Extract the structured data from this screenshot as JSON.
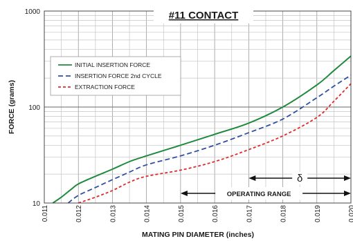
{
  "chart_data": {
    "type": "line",
    "title": "#11 CONTACT",
    "xlabel": "MATING PIN  DIAMETER (inches)",
    "ylabel": "FORCE (grams)",
    "xlim": [
      0.011,
      0.02
    ],
    "ylim": [
      10,
      1000
    ],
    "y_scale": "log",
    "grid": true,
    "x_ticks": [
      "0.011",
      "0.012",
      "0.013",
      "0.014",
      "0.015",
      "0.016",
      "0.017",
      "0.018",
      "0.019",
      "0.020"
    ],
    "y_ticks": [
      "10",
      "100",
      "1000"
    ],
    "legend_position": "left",
    "series": [
      {
        "name": "INITIAL INSERTION FORCE",
        "color": "#1f8a3e",
        "dash": "solid",
        "x": [
          0.01125,
          0.0115,
          0.0118,
          0.012,
          0.0125,
          0.013,
          0.0135,
          0.014,
          0.015,
          0.016,
          0.017,
          0.018,
          0.019,
          0.0195,
          0.02
        ],
        "y": [
          10,
          11.5,
          14,
          15.8,
          19,
          22.5,
          27,
          31,
          40,
          52,
          68,
          100,
          170,
          240,
          340
        ]
      },
      {
        "name": "INSERTION FORCE 2nd CYCLE",
        "color": "#2e4fa3",
        "dash": "dashed",
        "x": [
          0.0117,
          0.012,
          0.0125,
          0.013,
          0.0135,
          0.014,
          0.015,
          0.016,
          0.017,
          0.018,
          0.019,
          0.0195,
          0.02
        ],
        "y": [
          10,
          12,
          14.5,
          17.5,
          21,
          25,
          31,
          40,
          54,
          75,
          125,
          165,
          215
        ]
      },
      {
        "name": "EXTRACTION FORCE",
        "color": "#e02a2a",
        "dash": "dotted",
        "x": [
          0.012,
          0.0125,
          0.013,
          0.0135,
          0.014,
          0.015,
          0.016,
          0.017,
          0.018,
          0.019,
          0.0195,
          0.02
        ],
        "y": [
          10,
          11.5,
          13.5,
          16.5,
          19,
          22,
          27,
          36,
          50,
          78,
          115,
          175
        ]
      }
    ],
    "annotations": [
      {
        "label": "δ",
        "x_start": 0.017,
        "x_end": 0.02
      },
      {
        "label": "OPERATING RANGE",
        "x_start": 0.015,
        "x_end": 0.02
      }
    ]
  }
}
